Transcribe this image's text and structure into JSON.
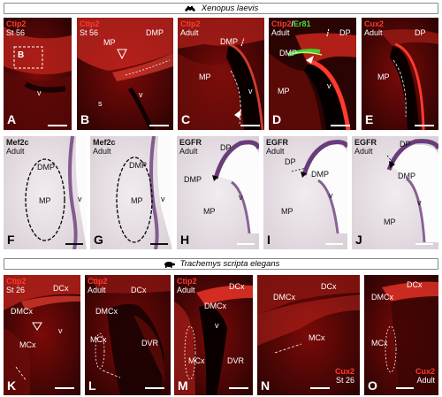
{
  "headers": {
    "xenopus": "Xenopus laevis",
    "trachemys": "Trachemys scripta elegans",
    "xenopus_icon": "frog-icon",
    "trachemys_icon": "turtle-icon"
  },
  "colors": {
    "ctip2_red": "#ff3a2e",
    "er81_green": "#41e13a",
    "ish_purple": "#6a3c7a"
  },
  "panels": {
    "A": {
      "letter": "A",
      "l1": "Ctip2",
      "l2": "St 56",
      "inset": "B",
      "v": "v"
    },
    "B": {
      "letter": "B",
      "l1": "Ctip2",
      "l2": "St 56",
      "mp": "MP",
      "dmp": "DMP",
      "v": "v",
      "s": "s"
    },
    "C": {
      "letter": "C",
      "l1": "Ctip2",
      "l2": "Adult",
      "dmp": "DMP",
      "mp": "MP",
      "v": "v"
    },
    "D": {
      "letter": "D",
      "l1a": "Ctip2",
      "slash": "/",
      "l1b": "Er81",
      "l2": "Adult",
      "dmp": "DMP",
      "dp": "DP",
      "mp": "MP",
      "v": "v"
    },
    "E": {
      "letter": "E",
      "l1": "Cux2",
      "l2": "Adult",
      "dp": "DP",
      "mp": "MP"
    },
    "F": {
      "letter": "F",
      "l1": "Mef2c",
      "l2": "Adult",
      "dmp": "DMP",
      "mp": "MP",
      "v": "v"
    },
    "G": {
      "letter": "G",
      "l1": "Mef2c",
      "l2": "Adult",
      "dmp": "DMP",
      "mp": "MP",
      "v": "v"
    },
    "H": {
      "letter": "H",
      "l1": "EGFR",
      "l2": "Adult",
      "dp": "DP",
      "dmp": "DMP",
      "mp": "MP",
      "v": "v"
    },
    "I": {
      "letter": "I",
      "l1": "EGFR",
      "l2": "Adult",
      "dp": "DP",
      "dmp": "DMP",
      "mp": "MP",
      "v": "v"
    },
    "J": {
      "letter": "J",
      "l1": "EGFR",
      "l2": "Adult",
      "dp": "DP",
      "dmp": "DMP",
      "mp": "MP",
      "v": "v"
    },
    "K": {
      "letter": "K",
      "l1": "Ctip2",
      "l2": "St 26",
      "dcx": "DCx",
      "dmcx": "DMCx",
      "mcx": "MCx",
      "v": "v"
    },
    "L": {
      "letter": "L",
      "l1": "Ctip2",
      "l2": "Adult",
      "dcx": "DCx",
      "dmcx": "DMCx",
      "mcx": "MCx",
      "dvr": "DVR"
    },
    "M": {
      "letter": "M",
      "l1": "Ctip2",
      "l2": "Adult",
      "dcx": "DCx",
      "dmcx": "DMCx",
      "mcx": "MCx",
      "dvr": "DVR",
      "v": "v"
    },
    "N": {
      "letter": "N",
      "l1": "Cux2",
      "l2": "St 26",
      "dcx": "DCx",
      "dmcx": "DMCx",
      "mcx": "MCx"
    },
    "O": {
      "letter": "O",
      "l1": "Cux2",
      "l2": "Adult",
      "dcx": "DCx",
      "dmcx": "DMCx",
      "mcx": "MCx"
    }
  }
}
